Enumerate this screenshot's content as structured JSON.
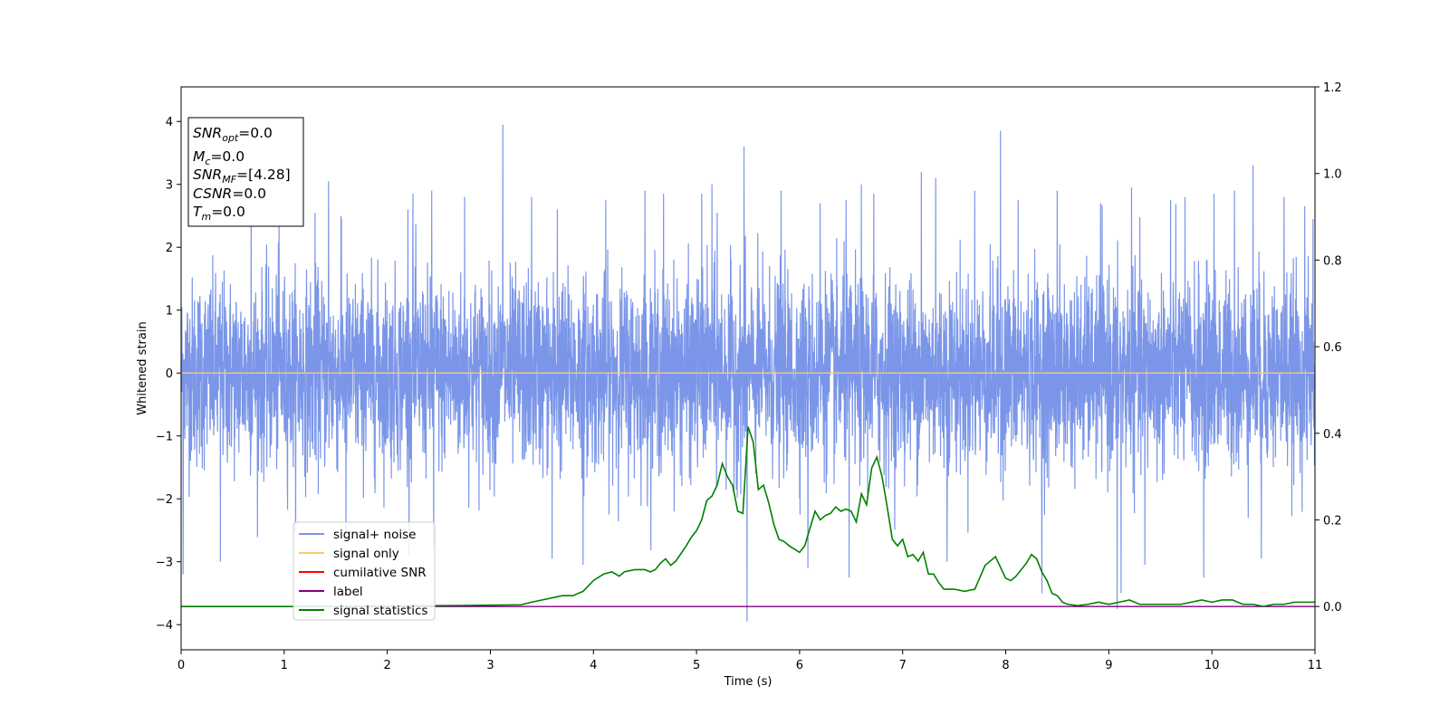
{
  "chart_data": {
    "type": "line",
    "xlabel": "Time (s)",
    "ylabel": "Whitened strain",
    "xlim": [
      0,
      11
    ],
    "ylim_left": [
      -4.4,
      4.55
    ],
    "ylim_right": [
      -0.1,
      1.2
    ],
    "xticks": [
      "0",
      "1",
      "2",
      "3",
      "4",
      "5",
      "6",
      "7",
      "8",
      "9",
      "10",
      "11"
    ],
    "yticks_left": [
      "−4",
      "−3",
      "−2",
      "−1",
      "0",
      "1",
      "2",
      "3",
      "4"
    ],
    "yticks_right": [
      "0.0",
      "0.2",
      "0.4",
      "0.6",
      "0.8",
      "1.0",
      "1.2"
    ],
    "info_box": [
      {
        "main": "SNR",
        "sub": "opt",
        "value": "=0.0"
      },
      {
        "main": "M",
        "sub": "c",
        "value": "=0.0"
      },
      {
        "main": "SNR",
        "sub": "MF",
        "value": "=[4.28]"
      },
      {
        "main": "CSNR",
        "sub": "",
        "value": "=0.0"
      },
      {
        "main": "T",
        "sub": "m",
        "value": "=0.0"
      }
    ],
    "legend": [
      {
        "label": "signal+ noise",
        "color": "#7b96e8"
      },
      {
        "label": "signal only",
        "color": "#f8c878"
      },
      {
        "label": "cumilative SNR",
        "color": "#ff0000"
      },
      {
        "label": "label",
        "color": "#800080"
      },
      {
        "label": "signal statistics",
        "color": "#008000"
      }
    ],
    "series": [
      {
        "name": "signal+ noise",
        "axis": "left",
        "style": "noise",
        "color": "#7b96e8",
        "sigma": 0.75,
        "spikes": [
          [
            0.02,
            -3.2
          ],
          [
            0.38,
            -3.0
          ],
          [
            0.68,
            2.9
          ],
          [
            0.95,
            2.6
          ],
          [
            1.3,
            2.55
          ],
          [
            1.43,
            3.05
          ],
          [
            1.55,
            2.5
          ],
          [
            1.6,
            -2.7
          ],
          [
            2.2,
            2.6
          ],
          [
            2.25,
            2.85
          ],
          [
            2.43,
            2.9
          ],
          [
            2.45,
            -2.75
          ],
          [
            2.75,
            2.8
          ],
          [
            3.12,
            3.95
          ],
          [
            3.4,
            2.8
          ],
          [
            3.6,
            -2.95
          ],
          [
            3.65,
            2.6
          ],
          [
            3.9,
            -3.05
          ],
          [
            4.12,
            2.75
          ],
          [
            4.5,
            2.9
          ],
          [
            4.68,
            2.85
          ],
          [
            5.05,
            2.85
          ],
          [
            5.15,
            3.0
          ],
          [
            5.2,
            2.55
          ],
          [
            5.46,
            3.6
          ],
          [
            5.49,
            -3.95
          ],
          [
            5.82,
            2.9
          ],
          [
            6.08,
            -3.1
          ],
          [
            6.2,
            2.7
          ],
          [
            6.45,
            2.75
          ],
          [
            6.48,
            -3.25
          ],
          [
            6.6,
            3.0
          ],
          [
            6.72,
            2.85
          ],
          [
            7.18,
            3.2
          ],
          [
            7.32,
            3.1
          ],
          [
            7.43,
            -3.0
          ],
          [
            7.7,
            2.9
          ],
          [
            7.95,
            3.85
          ],
          [
            8.12,
            2.75
          ],
          [
            8.35,
            -3.5
          ],
          [
            8.5,
            2.9
          ],
          [
            8.92,
            2.7
          ],
          [
            9.08,
            -3.75
          ],
          [
            9.12,
            -3.5
          ],
          [
            9.22,
            2.95
          ],
          [
            9.35,
            -3.05
          ],
          [
            9.6,
            2.75
          ],
          [
            9.74,
            2.8
          ],
          [
            9.92,
            -3.25
          ],
          [
            10.02,
            2.85
          ],
          [
            10.22,
            2.9
          ],
          [
            10.4,
            3.3
          ],
          [
            10.48,
            -2.95
          ],
          [
            10.7,
            2.8
          ],
          [
            10.9,
            2.65
          ],
          [
            10.98,
            2.45
          ]
        ]
      },
      {
        "name": "signal only",
        "axis": "left",
        "color": "#f8c878",
        "x": [
          0,
          11
        ],
        "y": [
          0,
          0
        ]
      },
      {
        "name": "label",
        "axis": "right",
        "color": "#800080",
        "x": [
          0,
          11
        ],
        "y": [
          0,
          0
        ]
      },
      {
        "name": "signal statistics",
        "axis": "right",
        "color": "#008000",
        "x": [
          0,
          0.5,
          1,
          1.5,
          2,
          2.5,
          3,
          3.3,
          3.4,
          3.5,
          3.6,
          3.7,
          3.8,
          3.85,
          3.9,
          4,
          4.1,
          4.18,
          4.25,
          4.3,
          4.4,
          4.5,
          4.55,
          4.6,
          4.65,
          4.7,
          4.75,
          4.8,
          4.9,
          4.95,
          5,
          5.05,
          5.1,
          5.15,
          5.2,
          5.25,
          5.3,
          5.35,
          5.4,
          5.45,
          5.5,
          5.55,
          5.6,
          5.65,
          5.7,
          5.75,
          5.8,
          5.85,
          5.9,
          6,
          6.05,
          6.1,
          6.15,
          6.2,
          6.25,
          6.3,
          6.35,
          6.4,
          6.45,
          6.5,
          6.55,
          6.6,
          6.65,
          6.7,
          6.75,
          6.8,
          6.85,
          6.9,
          6.95,
          7,
          7.05,
          7.1,
          7.15,
          7.2,
          7.25,
          7.3,
          7.35,
          7.4,
          7.5,
          7.6,
          7.7,
          7.8,
          7.9,
          8,
          8.05,
          8.1,
          8.15,
          8.2,
          8.25,
          8.3,
          8.35,
          8.4,
          8.45,
          8.5,
          8.55,
          8.6,
          8.7,
          8.8,
          8.9,
          9,
          9.1,
          9.2,
          9.3,
          9.5,
          9.7,
          9.8,
          9.9,
          10,
          10.1,
          10.2,
          10.3,
          10.4,
          10.5,
          10.6,
          10.7,
          10.8,
          10.9,
          11
        ],
        "y": [
          0,
          0,
          0,
          0,
          0.001,
          0.002,
          0.003,
          0.004,
          0.01,
          0.015,
          0.02,
          0.025,
          0.025,
          0.03,
          0.035,
          0.06,
          0.075,
          0.08,
          0.07,
          0.08,
          0.085,
          0.085,
          0.08,
          0.085,
          0.1,
          0.11,
          0.095,
          0.105,
          0.14,
          0.16,
          0.175,
          0.2,
          0.245,
          0.255,
          0.28,
          0.33,
          0.3,
          0.28,
          0.22,
          0.215,
          0.415,
          0.38,
          0.27,
          0.28,
          0.24,
          0.19,
          0.155,
          0.15,
          0.14,
          0.125,
          0.14,
          0.18,
          0.22,
          0.2,
          0.21,
          0.215,
          0.23,
          0.22,
          0.225,
          0.22,
          0.195,
          0.26,
          0.235,
          0.32,
          0.345,
          0.3,
          0.23,
          0.155,
          0.14,
          0.155,
          0.115,
          0.12,
          0.105,
          0.125,
          0.075,
          0.075,
          0.055,
          0.04,
          0.04,
          0.035,
          0.04,
          0.095,
          0.115,
          0.065,
          0.06,
          0.07,
          0.085,
          0.1,
          0.12,
          0.11,
          0.08,
          0.06,
          0.03,
          0.025,
          0.01,
          0.005,
          0.002,
          0.005,
          0.01,
          0.005,
          0.01,
          0.015,
          0.005,
          0.005,
          0.005,
          0.01,
          0.015,
          0.01,
          0.015,
          0.015,
          0.005,
          0.005,
          0.0,
          0.005,
          0.005,
          0.01,
          0.01,
          0.01
        ]
      }
    ]
  }
}
